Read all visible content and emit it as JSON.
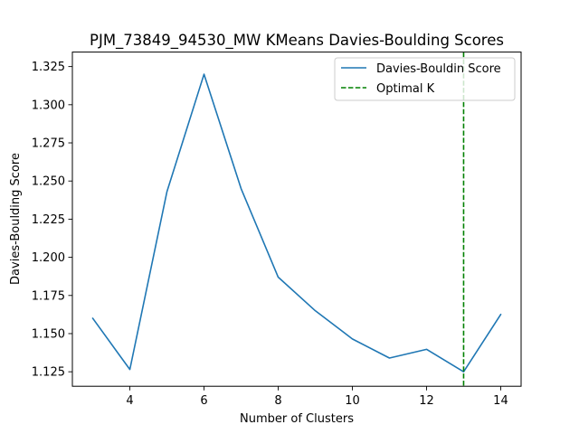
{
  "chart_data": {
    "type": "line",
    "title": "PJM_73849_94530_MW KMeans Davies-Boulding Scores",
    "xlabel": "Number of Clusters",
    "ylabel": "Davies-Boulding Score",
    "xlim": [
      2.45,
      14.55
    ],
    "ylim": [
      1.1155,
      1.3345
    ],
    "x_ticks": [
      4,
      6,
      8,
      10,
      12,
      14
    ],
    "y_ticks": [
      1.125,
      1.15,
      1.175,
      1.2,
      1.225,
      1.25,
      1.275,
      1.3,
      1.325
    ],
    "x_tick_labels": [
      "4",
      "6",
      "8",
      "10",
      "12",
      "14"
    ],
    "y_tick_labels": [
      "1.125",
      "1.150",
      "1.175",
      "1.200",
      "1.225",
      "1.250",
      "1.275",
      "1.300",
      "1.325"
    ],
    "series": [
      {
        "name": "Davies-Bouldin Score",
        "color": "#1f77b4",
        "x": [
          3,
          4,
          5,
          6,
          7,
          8,
          9,
          10,
          11,
          12,
          13,
          14
        ],
        "values": [
          1.16,
          1.1265,
          1.243,
          1.32,
          1.245,
          1.187,
          1.165,
          1.1465,
          1.134,
          1.1397,
          1.125,
          1.1625
        ]
      }
    ],
    "vline": {
      "name": "Optimal K",
      "x": 13,
      "color": "#008000",
      "style": "dashed"
    },
    "legend": {
      "position": "top-right",
      "entries": [
        "Davies-Bouldin Score",
        "Optimal K"
      ]
    },
    "grid": false
  }
}
